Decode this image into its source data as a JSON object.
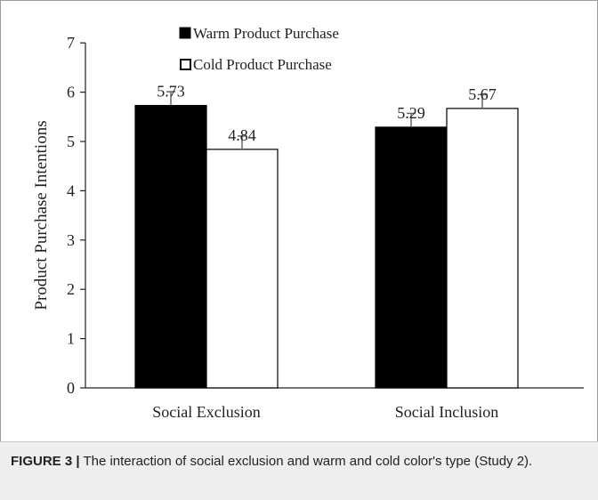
{
  "chart_data": {
    "type": "bar",
    "categories": [
      "Social Exclusion",
      "Social Inclusion"
    ],
    "series": [
      {
        "name": "Warm Product Purchase",
        "values": [
          5.73,
          5.29
        ],
        "error": [
          0.28,
          0.28
        ],
        "color": "#000000"
      },
      {
        "name": "Cold Product Purchase",
        "values": [
          4.84,
          5.67
        ],
        "error": [
          0.27,
          0.28
        ],
        "color": "#ffffff"
      }
    ],
    "data_labels": [
      [
        "5.73",
        "5.29"
      ],
      [
        "4.84",
        "5.67"
      ]
    ],
    "ylabel": "Product Purchase Intentions",
    "xlabel": "",
    "ylim": [
      0,
      7
    ],
    "yticks": [
      "0",
      "1",
      "2",
      "3",
      "4",
      "5",
      "6",
      "7"
    ],
    "legend_position": "top-left",
    "grid": false
  },
  "caption": {
    "label": "FIGURE 3 |",
    "text": " The interaction of social exclusion and warm and cold color's type (Study 2)."
  }
}
